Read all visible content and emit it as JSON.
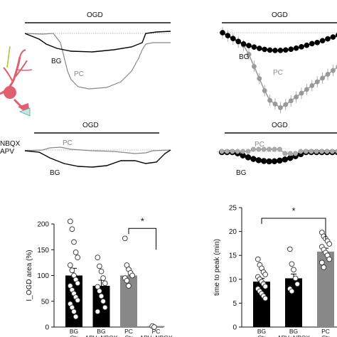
{
  "panels": {
    "trace_top_left": {
      "bar_label": "OGD",
      "labels": [
        "BG",
        "PC"
      ]
    },
    "trace_top_right": {
      "bar_label": "OGD",
      "labels": [
        "BG",
        "PC"
      ]
    },
    "trace_mid_left": {
      "bar_label": "OGD",
      "labels": [
        "PC",
        "BG"
      ],
      "side_labels": [
        "NBQX",
        "APV"
      ]
    },
    "trace_mid_right": {
      "bar_label": "OGD",
      "labels": [
        "PC",
        "BG"
      ]
    }
  },
  "chart_data": [
    {
      "type": "bar",
      "ylabel": "I_OGD area (%)",
      "ylim": [
        0,
        200
      ],
      "yticks": [
        0,
        50,
        100,
        150,
        200
      ],
      "categories": [
        "BG\nCtr",
        "BG\nAPV+NBQX",
        "PC\nCtr",
        "PC\nAPV+NBQX"
      ],
      "values": [
        100,
        80,
        100,
        2
      ],
      "errors": [
        14,
        11,
        13,
        0
      ],
      "colors": [
        "#000000",
        "#000000",
        "#888888",
        "#888888"
      ],
      "points": [
        [
          205,
          190,
          165,
          145,
          135,
          120,
          110,
          100,
          92,
          85,
          80,
          72,
          65,
          58,
          52,
          45,
          38,
          30,
          20
        ],
        [
          135,
          118,
          108,
          95,
          85,
          78,
          70,
          60,
          50,
          38,
          30
        ],
        [
          172,
          120,
          112,
          105,
          100,
          95,
          90,
          80
        ],
        [
          2,
          0
        ]
      ],
      "significance": {
        "from": 2,
        "to": 3,
        "label": "*"
      }
    },
    {
      "type": "bar",
      "ylabel": "time to peak (min)",
      "ylim": [
        0,
        25
      ],
      "yticks": [
        0,
        5,
        10,
        15,
        20,
        25
      ],
      "categories": [
        "BG\nCtr",
        "BG\nAPV+NBQX",
        "PC\nCtr"
      ],
      "values": [
        9.5,
        10.2,
        15.8
      ],
      "errors": [
        0.7,
        0.9,
        0.7
      ],
      "colors": [
        "#000000",
        "#000000",
        "#888888"
      ],
      "points": [
        [
          14.2,
          13,
          12.3,
          11.5,
          11,
          10.5,
          10,
          9.5,
          9,
          8.5,
          8,
          7.5,
          7,
          6.5,
          6
        ],
        [
          16.3,
          13.2,
          12,
          10.2,
          9,
          8,
          7.5
        ],
        [
          19.8,
          19,
          18.5,
          18,
          17.4,
          16.8,
          16.2,
          15.6,
          15,
          14.2,
          13.5,
          12.5
        ]
      ],
      "significance": {
        "from": 0,
        "to": 2,
        "label": "*"
      }
    }
  ]
}
